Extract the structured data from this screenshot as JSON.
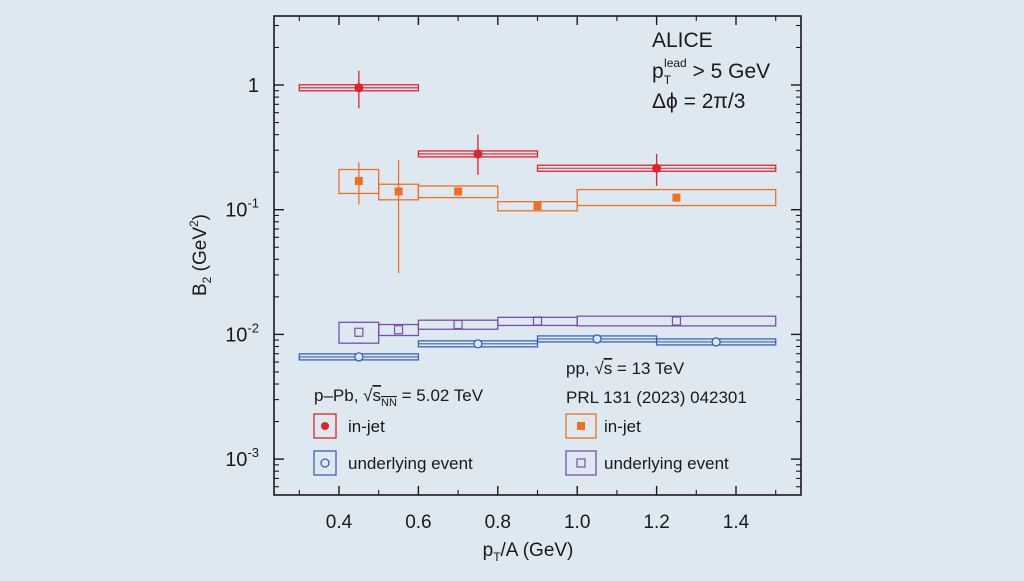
{
  "chart_data": {
    "type": "scatter",
    "xlabel": "p_T/A (GeV)",
    "ylabel": "B_2 (GeV^2)",
    "xlim": [
      0.25,
      1.6
    ],
    "ylim": [
      0.0005,
      4
    ],
    "yscale": "log",
    "grid": false,
    "x_ticks": [
      0.4,
      0.6,
      0.8,
      1.0,
      1.2,
      1.4
    ],
    "x_tick_labels": [
      "0.4",
      "0.6",
      "0.8",
      "1.0",
      "1.2",
      "1.4"
    ],
    "y_ticks": [
      1,
      0.1,
      0.01,
      0.001
    ],
    "y_tick_labels": [
      {
        "base": "1",
        "exp": ""
      },
      {
        "base": "10",
        "exp": "-1"
      },
      {
        "base": "10",
        "exp": "-2"
      },
      {
        "base": "10",
        "exp": "-3"
      }
    ],
    "annotations": {
      "experiment": "ALICE",
      "cut_base": "p",
      "cut_sub": "T",
      "cut_sup": "lead",
      "cut_rest": " > 5 GeV",
      "dphi": "Δϕ = 2π/3",
      "ppb_label_pre": "p–Pb, ",
      "ppb_sqrt": "s",
      "ppb_sub": "NN",
      "ppb_label_post": " = 5.02 TeV",
      "pp_label_pre": "pp, ",
      "pp_sqrt": "s",
      "pp_label_post": " = 13 TeV",
      "pp_ref": "PRL 131 (2023) 042301"
    },
    "legend": [
      {
        "name": "in-jet",
        "group": "p–Pb",
        "marker": "filled-circle",
        "color": "#e0222a"
      },
      {
        "name": "underlying event",
        "group": "p–Pb",
        "marker": "open-circle",
        "color": "#3a62b8"
      },
      {
        "name": "in-jet",
        "group": "pp",
        "marker": "filled-square",
        "color": "#f07020"
      },
      {
        "name": "underlying event",
        "group": "pp",
        "marker": "open-square",
        "color": "#7a4fa8"
      }
    ],
    "series": [
      {
        "name": "in-jet",
        "system": "p–Pb",
        "marker": "filled-circle",
        "color": "#e0222a",
        "points": [
          {
            "x": 0.45,
            "y": 0.95,
            "x_lo": 0.3,
            "x_hi": 0.6,
            "stat_lo": 0.65,
            "stat_hi": 1.3,
            "sys_lo": 0.92,
            "sys_hi": 1.0
          },
          {
            "x": 0.75,
            "y": 0.28,
            "x_lo": 0.6,
            "x_hi": 0.9,
            "stat_lo": 0.19,
            "stat_hi": 0.4,
            "sys_lo": 0.27,
            "sys_hi": 0.3
          },
          {
            "x": 1.2,
            "y": 0.215,
            "x_lo": 0.9,
            "x_hi": 1.5,
            "stat_lo": 0.155,
            "stat_hi": 0.28,
            "sys_lo": 0.21,
            "sys_hi": 0.225
          }
        ]
      },
      {
        "name": "underlying event",
        "system": "p–Pb",
        "marker": "open-circle",
        "color": "#3a62b8",
        "points": [
          {
            "x": 0.45,
            "y": 0.0066,
            "x_lo": 0.3,
            "x_hi": 0.6,
            "sys_lo": 0.0063,
            "sys_hi": 0.0068
          },
          {
            "x": 0.75,
            "y": 0.0084,
            "x_lo": 0.6,
            "x_hi": 0.9,
            "sys_lo": 0.008,
            "sys_hi": 0.0087
          },
          {
            "x": 1.05,
            "y": 0.0092,
            "x_lo": 0.9,
            "x_hi": 1.2,
            "sys_lo": 0.0087,
            "sys_hi": 0.0096
          },
          {
            "x": 1.35,
            "y": 0.0087,
            "x_lo": 1.2,
            "x_hi": 1.5,
            "sys_lo": 0.0082,
            "sys_hi": 0.0091
          }
        ]
      },
      {
        "name": "in-jet",
        "system": "pp",
        "marker": "filled-square",
        "color": "#f07020",
        "points": [
          {
            "x": 0.45,
            "y": 0.17,
            "x_lo": 0.4,
            "x_hi": 0.5,
            "stat_lo": 0.11,
            "stat_hi": 0.24,
            "sys_lo": 0.135,
            "sys_hi": 0.21
          },
          {
            "x": 0.55,
            "y": 0.14,
            "x_lo": 0.5,
            "x_hi": 0.6,
            "stat_lo": 0.031,
            "stat_hi": 0.25,
            "sys_lo": 0.12,
            "sys_hi": 0.16
          },
          {
            "x": 0.7,
            "y": 0.14,
            "x_lo": 0.6,
            "x_hi": 0.8,
            "stat_lo": 0.13,
            "stat_hi": 0.15,
            "sys_lo": 0.125,
            "sys_hi": 0.155
          },
          {
            "x": 0.9,
            "y": 0.107,
            "x_lo": 0.8,
            "x_hi": 1.0,
            "stat_lo": 0.102,
            "stat_hi": 0.112,
            "sys_lo": 0.098,
            "sys_hi": 0.116
          },
          {
            "x": 1.25,
            "y": 0.125,
            "x_lo": 1.0,
            "x_hi": 1.5,
            "stat_lo": 0.12,
            "stat_hi": 0.13,
            "sys_lo": 0.108,
            "sys_hi": 0.145
          }
        ]
      },
      {
        "name": "underlying event",
        "system": "pp",
        "marker": "open-square",
        "color": "#7a4fa8",
        "points": [
          {
            "x": 0.45,
            "y": 0.0104,
            "x_lo": 0.4,
            "x_hi": 0.5,
            "sys_lo": 0.0085,
            "sys_hi": 0.0125
          },
          {
            "x": 0.55,
            "y": 0.0109,
            "x_lo": 0.5,
            "x_hi": 0.6,
            "sys_lo": 0.0098,
            "sys_hi": 0.012
          },
          {
            "x": 0.7,
            "y": 0.012,
            "x_lo": 0.6,
            "x_hi": 0.8,
            "sys_lo": 0.011,
            "sys_hi": 0.013
          },
          {
            "x": 0.9,
            "y": 0.0128,
            "x_lo": 0.8,
            "x_hi": 1.0,
            "sys_lo": 0.0118,
            "sys_hi": 0.0137
          },
          {
            "x": 1.25,
            "y": 0.0128,
            "x_lo": 1.0,
            "x_hi": 1.5,
            "sys_lo": 0.0117,
            "sys_hi": 0.014
          }
        ]
      }
    ]
  }
}
